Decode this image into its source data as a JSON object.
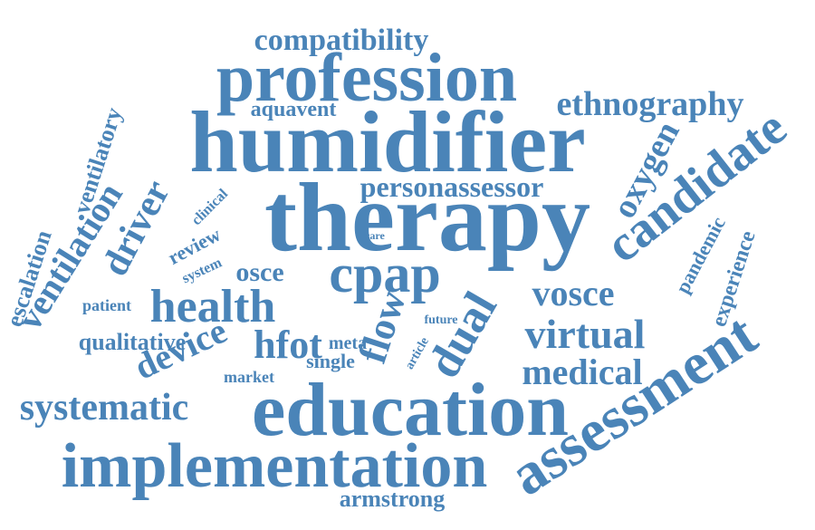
{
  "accent_color": "#4a84b8",
  "words": [
    {
      "key": "therapy",
      "text": "therapy"
    },
    {
      "key": "humidifier",
      "text": "humidifier"
    },
    {
      "key": "education",
      "text": "education"
    },
    {
      "key": "implementation",
      "text": "implementation"
    },
    {
      "key": "profession",
      "text": "profession"
    },
    {
      "key": "assessment",
      "text": "assessment"
    },
    {
      "key": "candidate",
      "text": "candidate"
    },
    {
      "key": "cpap",
      "text": "cpap"
    },
    {
      "key": "dual",
      "text": "dual"
    },
    {
      "key": "health",
      "text": "health"
    },
    {
      "key": "virtual",
      "text": "virtual"
    },
    {
      "key": "systematic",
      "text": "systematic"
    },
    {
      "key": "ventilation",
      "text": "ventilation"
    },
    {
      "key": "driver",
      "text": "driver"
    },
    {
      "key": "device",
      "text": "device"
    },
    {
      "key": "hfot",
      "text": "hfot"
    },
    {
      "key": "flow",
      "text": "flow"
    },
    {
      "key": "medical",
      "text": "medical"
    },
    {
      "key": "vosce",
      "text": "vosce"
    },
    {
      "key": "ethnography",
      "text": "ethnography"
    },
    {
      "key": "compatibility",
      "text": "compatibility"
    },
    {
      "key": "oxygen",
      "text": "oxygen"
    },
    {
      "key": "personassessor",
      "text": "personassessor"
    },
    {
      "key": "osce",
      "text": "osce"
    },
    {
      "key": "qualitative",
      "text": "qualitative"
    },
    {
      "key": "armstrong",
      "text": "armstrong"
    },
    {
      "key": "escalation",
      "text": "escalation"
    },
    {
      "key": "ventilatory",
      "text": "ventilatory"
    },
    {
      "key": "experience",
      "text": "experience"
    },
    {
      "key": "pandemic",
      "text": "pandemic"
    },
    {
      "key": "aquavent",
      "text": "aquavent"
    },
    {
      "key": "review",
      "text": "review"
    },
    {
      "key": "single",
      "text": "single"
    },
    {
      "key": "meta",
      "text": "meta"
    },
    {
      "key": "patient",
      "text": "patient"
    },
    {
      "key": "system",
      "text": "system"
    },
    {
      "key": "market",
      "text": "market"
    },
    {
      "key": "clinical",
      "text": "clinical"
    },
    {
      "key": "future",
      "text": "future"
    },
    {
      "key": "article",
      "text": "article"
    },
    {
      "key": "care",
      "text": "care"
    }
  ]
}
